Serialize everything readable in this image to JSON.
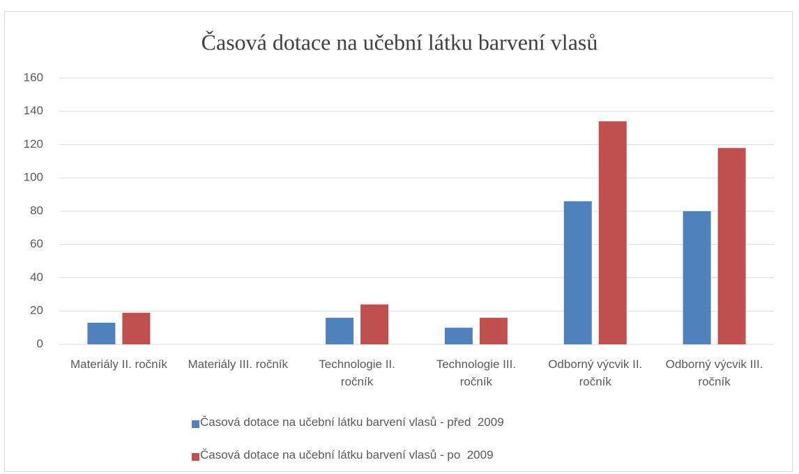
{
  "chart_data": {
    "type": "bar",
    "title": "Časová dotace na učební látku barvení vlasů",
    "categories": [
      "Materiály II. ročník",
      "Materiály III. ročník",
      "Technologie II. ročník",
      "Technologie III. ročník",
      "Odborný výcvik II. ročník",
      "Odborný výcvik III. ročník"
    ],
    "series": [
      {
        "name": "Časová dotace na učební látku barvení vlasů - před  2009",
        "color": "#4f81bd",
        "values": [
          13,
          0,
          16,
          10,
          86,
          80
        ]
      },
      {
        "name": "Časová dotace na učební látku barvení vlasů - po  2009",
        "color": "#c0504d",
        "values": [
          19,
          0,
          24,
          16,
          134,
          118
        ]
      }
    ],
    "ylim": [
      0,
      160
    ],
    "yticks": [
      0,
      20,
      40,
      60,
      80,
      100,
      120,
      140,
      160
    ],
    "grid": true,
    "legend": "bottom"
  }
}
